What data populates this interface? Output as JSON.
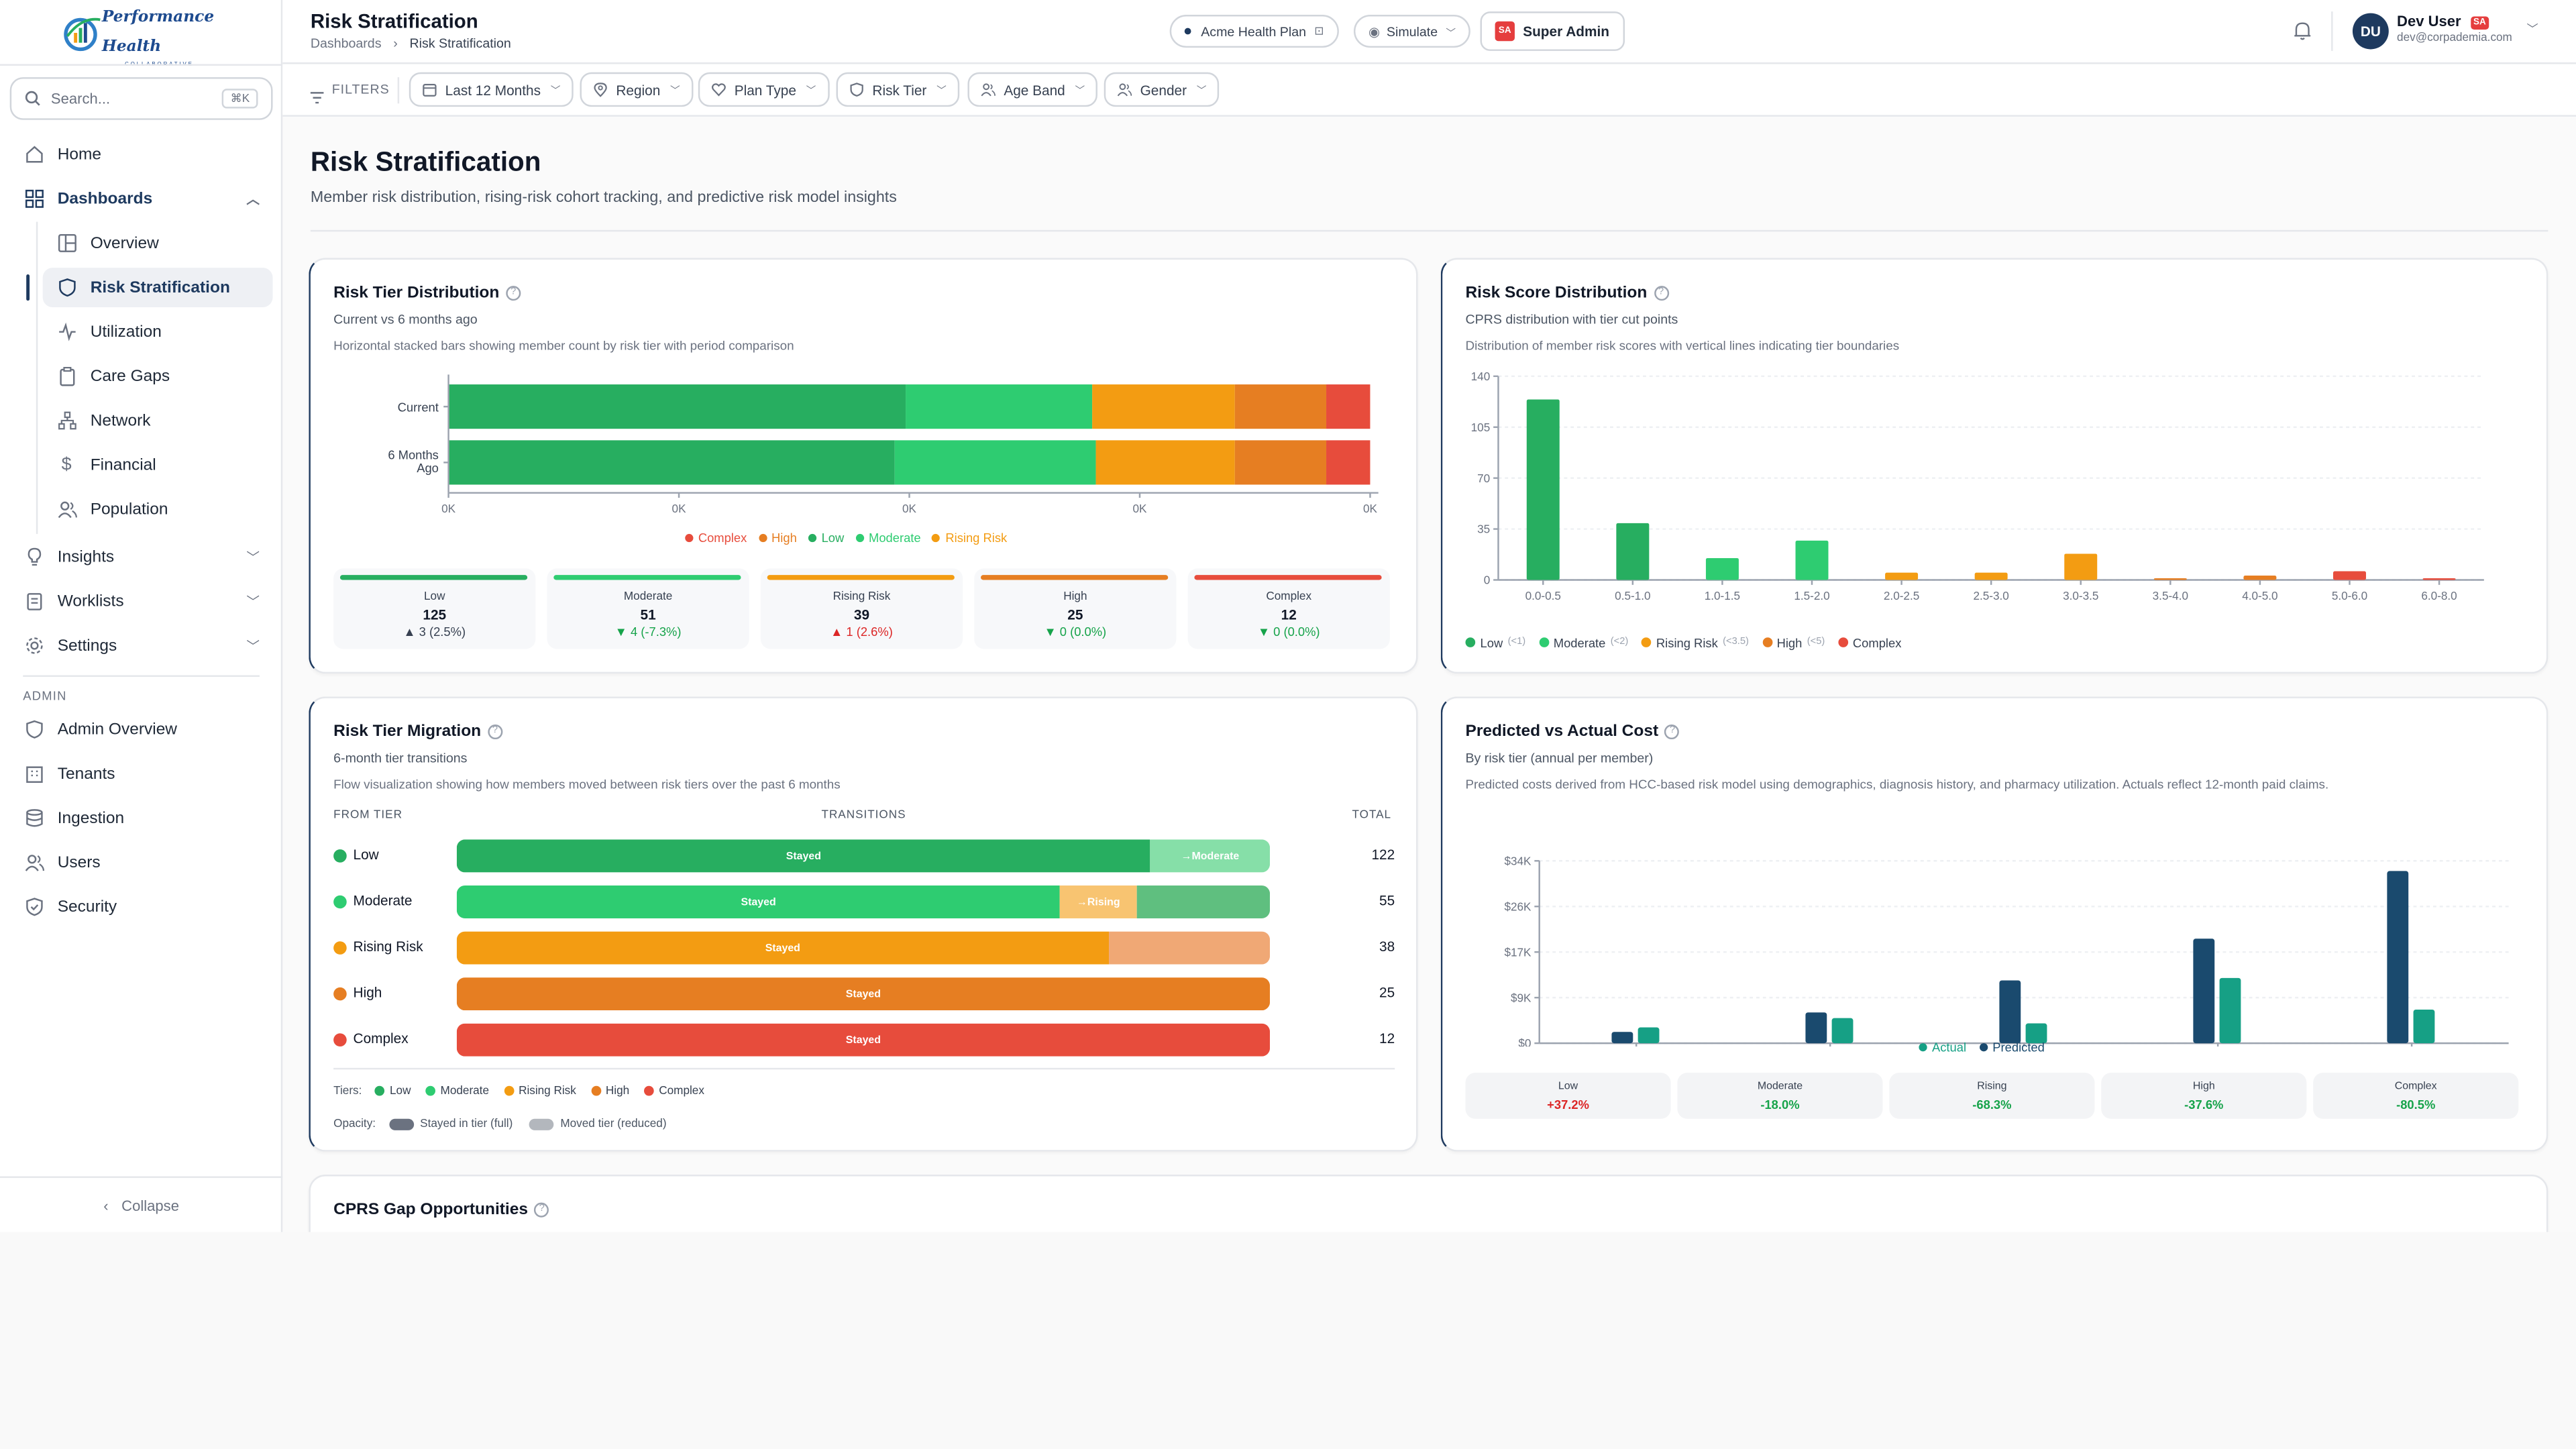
{
  "brand": {
    "name": "Performance Health",
    "tagline": "COLLABORATIVE"
  },
  "sidebar": {
    "search_placeholder": "Search...",
    "search_kbd": "⌘K",
    "items": [
      {
        "label": "Home"
      },
      {
        "label": "Dashboards"
      },
      {
        "label": "Overview"
      },
      {
        "label": "Risk Stratification"
      },
      {
        "label": "Utilization"
      },
      {
        "label": "Care Gaps"
      },
      {
        "label": "Network"
      },
      {
        "label": "Financial"
      },
      {
        "label": "Population"
      },
      {
        "label": "Insights"
      },
      {
        "label": "Worklists"
      },
      {
        "label": "Settings"
      }
    ],
    "admin_label": "ADMIN",
    "admin_items": [
      {
        "label": "Admin Overview"
      },
      {
        "label": "Tenants"
      },
      {
        "label": "Ingestion"
      },
      {
        "label": "Users"
      },
      {
        "label": "Security"
      }
    ],
    "collapse_label": "Collapse"
  },
  "header": {
    "title": "Risk Stratification",
    "breadcrumb": [
      "Dashboards",
      "Risk Stratification"
    ],
    "plan": "Acme Health Plan",
    "simulate": "Simulate",
    "role_badge": "SA",
    "role": "Super Admin",
    "user_initials": "DU",
    "user_name": "Dev User",
    "user_badge": "SA",
    "user_email": "dev@corpademia.com"
  },
  "filters": {
    "label": "FILTERS",
    "items": [
      "Last 12 Months",
      "Region",
      "Plan Type",
      "Risk Tier",
      "Age Band",
      "Gender"
    ]
  },
  "page": {
    "title": "Risk Stratification",
    "subtitle": "Member risk distribution, rising-risk cohort tracking, and predictive risk model insights"
  },
  "colors": {
    "low": "#27ae60",
    "moderate": "#2ecc71",
    "rising": "#f39c12",
    "high": "#e67e22",
    "complex": "#e74c3c",
    "actual": "#1a4a6e",
    "predicted": "#16a085"
  },
  "tier_dist": {
    "title": "Risk Tier Distribution",
    "subtitle": "Current vs 6 months ago",
    "description": "Horizontal stacked bars showing member count by risk tier with period comparison",
    "x_ticks": [
      "0K",
      "0K",
      "0K",
      "0K",
      "0K"
    ],
    "legend": [
      "Complex",
      "High",
      "Low",
      "Moderate",
      "Rising Risk"
    ],
    "stats": [
      {
        "label": "Low",
        "value": "125",
        "change": "▲ 3 (2.5%)",
        "color": "#374151"
      },
      {
        "label": "Moderate",
        "value": "51",
        "change": "▼ 4 (-7.3%)",
        "color": "#16a34a"
      },
      {
        "label": "Rising Risk",
        "value": "39",
        "change": "▲ 1 (2.6%)",
        "color": "#dc2626"
      },
      {
        "label": "High",
        "value": "25",
        "change": "▼ 0 (0.0%)",
        "color": "#16a34a"
      },
      {
        "label": "Complex",
        "value": "12",
        "change": "▼ 0 (0.0%)",
        "color": "#16a34a"
      }
    ]
  },
  "score_dist": {
    "title": "Risk Score Distribution",
    "subtitle": "CPRS distribution with tier cut points",
    "description": "Distribution of member risk scores with vertical lines indicating tier boundaries",
    "legend": [
      {
        "name": "Low",
        "note": "(<1)"
      },
      {
        "name": "Moderate",
        "note": "(<2)"
      },
      {
        "name": "Rising Risk",
        "note": "(<3.5)"
      },
      {
        "name": "High",
        "note": "(<5)"
      },
      {
        "name": "Complex",
        "note": ""
      }
    ]
  },
  "migration": {
    "title": "Risk Tier Migration",
    "subtitle": "6-month tier transitions",
    "description": "Flow visualization showing how members moved between risk tiers over the past 6 months",
    "col_from": "FROM TIER",
    "col_trans": "TRANSITIONS",
    "col_total": "TOTAL",
    "rows": [
      {
        "tier": "Low",
        "total": "122",
        "stayed_label": "Stayed",
        "moved_label": "→Moderate",
        "stayed": 100,
        "moved": 17,
        "moved_color": "#86dfa8",
        "rest_color": ""
      },
      {
        "tier": "Moderate",
        "total": "55",
        "stayed_label": "Stayed",
        "moved_label": "→Rising",
        "stayed": 87,
        "moved": 11,
        "moved_color": "#f8c471",
        "rest_color": "#5fbf7f"
      },
      {
        "tier": "Rising Risk",
        "total": "38",
        "stayed_label": "Stayed",
        "moved_label": "",
        "stayed": 94,
        "moved": 6,
        "moved_color": "#f0a875",
        "rest_color": ""
      },
      {
        "tier": "High",
        "total": "25",
        "stayed_label": "Stayed",
        "moved_label": "",
        "stayed": 100,
        "moved": 0,
        "moved_color": "",
        "rest_color": ""
      },
      {
        "tier": "Complex",
        "total": "12",
        "stayed_label": "Stayed",
        "moved_label": "",
        "stayed": 100,
        "moved": 0,
        "moved_color": "",
        "rest_color": ""
      }
    ],
    "tiers_label": "Tiers:",
    "opacity_label": "Opacity:",
    "opacity_full": "Stayed in tier (full)",
    "opacity_reduced": "Moved tier (reduced)"
  },
  "cost": {
    "title": "Predicted vs Actual Cost",
    "subtitle": "By risk tier (annual per member)",
    "description": "Predicted costs derived from HCC-based risk model using demographics, diagnosis history, and pharmacy utilization. Actuals reflect 12-month paid claims.",
    "legend": [
      "Actual",
      "Predicted"
    ],
    "gaps": [
      {
        "label": "Low",
        "value": "+37.2%",
        "color": "#dc2626"
      },
      {
        "label": "Moderate",
        "value": "-18.0%",
        "color": "#16a34a"
      },
      {
        "label": "Rising",
        "value": "-68.3%",
        "color": "#16a34a"
      },
      {
        "label": "High",
        "value": "-37.6%",
        "color": "#16a34a"
      },
      {
        "label": "Complex",
        "value": "-80.5%",
        "color": "#16a34a"
      }
    ]
  },
  "cprs": {
    "title": "CPRS Gap Opportunities"
  },
  "chart_data": [
    {
      "type": "bar",
      "orientation": "horizontal-stacked",
      "categories": [
        "Current",
        "6 Months Ago"
      ],
      "series": [
        {
          "name": "Low",
          "values": [
            125,
            122
          ]
        },
        {
          "name": "Moderate",
          "values": [
            51,
            55
          ]
        },
        {
          "name": "Rising Risk",
          "values": [
            39,
            38
          ]
        },
        {
          "name": "High",
          "values": [
            25,
            25
          ]
        },
        {
          "name": "Complex",
          "values": [
            12,
            12
          ]
        }
      ],
      "x_ticks": [
        "0K",
        "0K",
        "0K",
        "0K",
        "0K"
      ],
      "legend_position": "bottom"
    },
    {
      "type": "bar",
      "categories": [
        "0.0-0.5",
        "0.5-1.0",
        "1.0-1.5",
        "1.5-2.0",
        "2.0-2.5",
        "2.5-3.0",
        "3.0-3.5",
        "3.5-4.0",
        "4.0-5.0",
        "5.0-6.0",
        "6.0-8.0"
      ],
      "values": [
        124,
        39,
        15,
        27,
        5,
        5,
        18,
        1,
        3,
        6,
        1
      ],
      "tiers": [
        "low",
        "low",
        "moderate",
        "moderate",
        "rising",
        "rising",
        "rising",
        "high",
        "high",
        "complex",
        "complex"
      ],
      "ylim": [
        0,
        140
      ],
      "y_ticks": [
        0,
        35,
        70,
        105,
        140
      ],
      "grid": true,
      "legend_position": "bottom"
    },
    {
      "type": "bar",
      "categories": [
        "Low",
        "Moderate",
        "Rising Risk",
        "High",
        "Complex"
      ],
      "series": [
        {
          "name": "Actual",
          "values": [
            2800,
            7600,
            15500,
            25800,
            42500
          ]
        },
        {
          "name": "Predicted",
          "values": [
            3900,
            6200,
            4900,
            16100,
            8300
          ]
        }
      ],
      "ylim": [
        0,
        45000
      ],
      "y_ticks": [
        "$0",
        "$9K",
        "$17K",
        "$26K",
        "$34K"
      ],
      "grid": true,
      "legend_position": "bottom"
    }
  ]
}
